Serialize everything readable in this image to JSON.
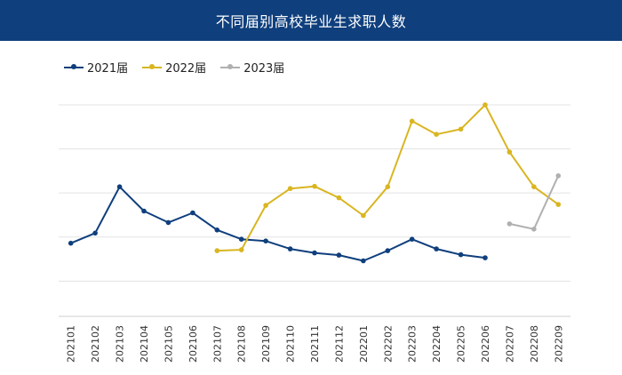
{
  "header": {
    "title": "不同届别高校毕业生求职人数"
  },
  "chart_data": {
    "type": "line",
    "title": "不同届别高校毕业生求职人数",
    "xlabel": "",
    "ylabel": "",
    "grid": true,
    "legend_position": "top-left",
    "x": [
      "202101",
      "202102",
      "202103",
      "202104",
      "202105",
      "202106",
      "202107",
      "202108",
      "202109",
      "202110",
      "202111",
      "202112",
      "202201",
      "202202",
      "202203",
      "202204",
      "202205",
      "202206",
      "202207",
      "202208",
      "202209"
    ],
    "series": [
      {
        "name": "2021届",
        "color": "#0f3f7d",
        "values": [
          0.86,
          1.09,
          2.14,
          1.59,
          1.33,
          1.55,
          1.16,
          0.95,
          0.91,
          0.73,
          0.64,
          0.59,
          0.46,
          0.69,
          0.95,
          0.73,
          0.6,
          0.53,
          null,
          null,
          null
        ]
      },
      {
        "name": "2022届",
        "color": "#d9b520",
        "values": [
          null,
          null,
          null,
          null,
          null,
          null,
          0.69,
          0.71,
          1.72,
          2.1,
          2.15,
          1.89,
          1.49,
          2.14,
          3.63,
          3.33,
          3.45,
          4.0,
          2.93,
          2.14,
          1.74
        ]
      },
      {
        "name": "2023届",
        "color": "#b0b0b0",
        "values": [
          null,
          null,
          null,
          null,
          null,
          null,
          null,
          null,
          null,
          null,
          null,
          null,
          null,
          null,
          null,
          null,
          null,
          null,
          1.3,
          1.18,
          2.39
        ]
      }
    ],
    "ylim": [
      -0.8,
      4.0
    ],
    "gridlines": [
      0,
      1,
      2,
      3,
      4
    ]
  }
}
